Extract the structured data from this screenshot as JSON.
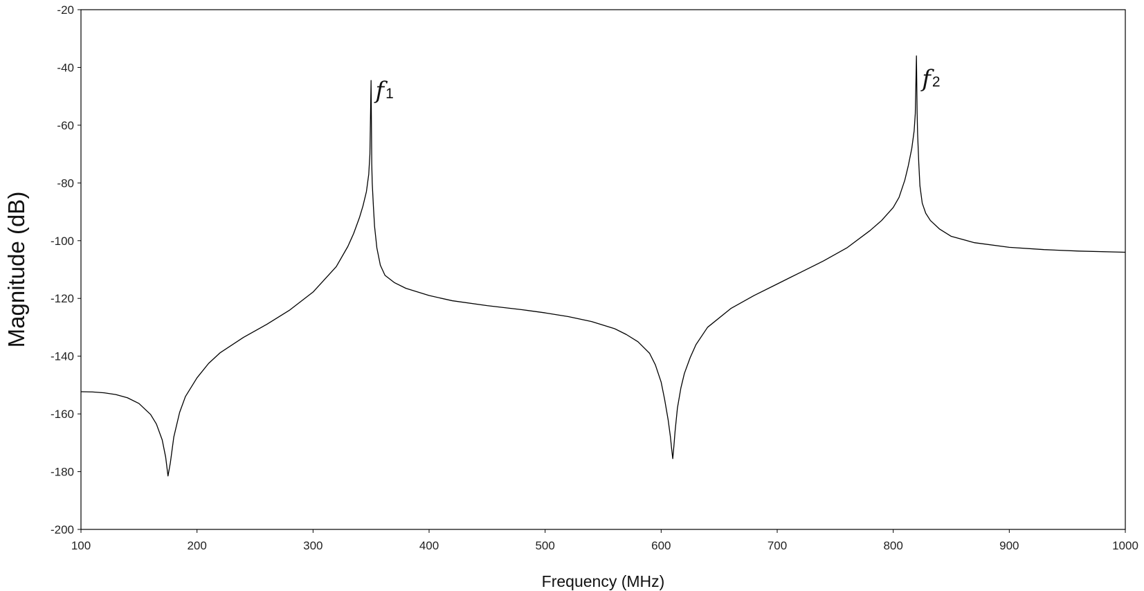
{
  "chart_data": {
    "type": "line",
    "title": "",
    "xlabel": "Frequency (MHz)",
    "ylabel": "Magnitude (dB)",
    "xlim": [
      100,
      1000
    ],
    "ylim": [
      -200,
      -20
    ],
    "xticks": [
      100,
      200,
      300,
      400,
      500,
      600,
      700,
      800,
      900,
      1000
    ],
    "yticks": [
      -20,
      -40,
      -60,
      -80,
      -100,
      -120,
      -140,
      -160,
      -180,
      -200
    ],
    "grid": false,
    "legend": "none",
    "line_color": "#000000",
    "series": [
      {
        "x": [
          100,
          110,
          120,
          130,
          140,
          150,
          160,
          165,
          170,
          173,
          175,
          177,
          180,
          185,
          190,
          200,
          210,
          220,
          240,
          260,
          280,
          300,
          320,
          330,
          335,
          340,
          343,
          346,
          348,
          349,
          350,
          350.6,
          351,
          352,
          353,
          355,
          358,
          362,
          370,
          380,
          400,
          420,
          450,
          480,
          500,
          520,
          540,
          560,
          570,
          580,
          590,
          595,
          600,
          603,
          606,
          608,
          609,
          610,
          611,
          612,
          614,
          617,
          620,
          625,
          630,
          640,
          660,
          680,
          700,
          720,
          740,
          760,
          780,
          790,
          800,
          805,
          810,
          813,
          816,
          818,
          819,
          820,
          820.6,
          821,
          822,
          823,
          825,
          828,
          832,
          840,
          850,
          870,
          900,
          930,
          960,
          1000
        ],
        "y": [
          -152.3,
          -152.4,
          -152.7,
          -153.3,
          -154.4,
          -156.4,
          -160.2,
          -163.5,
          -169.0,
          -175.0,
          -181.5,
          -177.0,
          -168.0,
          -159.5,
          -154.0,
          -147.5,
          -142.5,
          -138.8,
          -133.5,
          -129.0,
          -124.0,
          -117.8,
          -109.0,
          -102.0,
          -97.5,
          -92.0,
          -88.0,
          -83.0,
          -77.0,
          -70.0,
          -44.5,
          -73.5,
          -80.0,
          -88.0,
          -95.0,
          -102.5,
          -108.5,
          -112.0,
          -114.5,
          -116.5,
          -119.0,
          -120.8,
          -122.5,
          -123.9,
          -125.0,
          -126.3,
          -128.0,
          -130.5,
          -132.5,
          -135.0,
          -139.0,
          -143.0,
          -149.0,
          -155.0,
          -162.0,
          -168.0,
          -172.0,
          -175.5,
          -171.0,
          -166.0,
          -158.0,
          -151.0,
          -146.0,
          -140.5,
          -136.0,
          -130.0,
          -123.5,
          -119.0,
          -115.0,
          -111.0,
          -107.0,
          -102.5,
          -96.5,
          -93.0,
          -88.5,
          -85.0,
          -79.0,
          -74.0,
          -68.0,
          -62.0,
          -56.0,
          -36.0,
          -56.0,
          -63.0,
          -73.0,
          -81.0,
          -87.0,
          -90.5,
          -93.0,
          -96.0,
          -98.5,
          -100.7,
          -102.3,
          -103.1,
          -103.6,
          -104.0
        ]
      }
    ],
    "annotations": [
      {
        "text": "f",
        "subscript": "1",
        "x": 352,
        "y": -42
      },
      {
        "text": "f",
        "subscript": "2",
        "x": 823,
        "y": -38
      }
    ]
  }
}
